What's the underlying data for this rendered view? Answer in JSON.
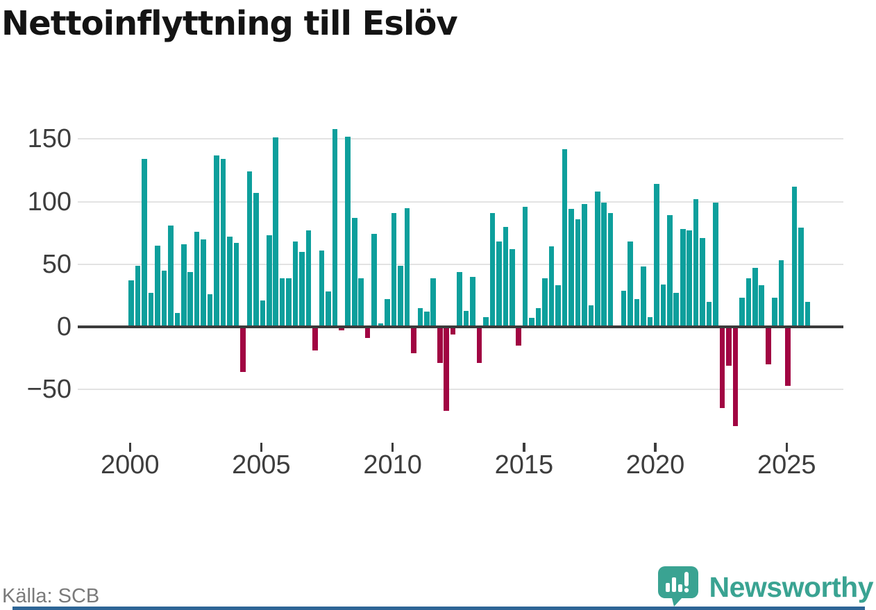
{
  "title": "Nettoinflyttning till Eslöv",
  "source_label": "Källa: SCB",
  "brand": {
    "name": "Newsworthy",
    "icon": "speech-bubble-bar-chart-exclamation-icon",
    "color": "#3aa392"
  },
  "colors": {
    "positive_bar": "#0d9f9c",
    "negative_bar": "#a10542",
    "zero_axis": "#3b3b3b",
    "gridline": "#e3e3e3",
    "tick_label": "#3d3d3d",
    "title_text": "#141414",
    "source_text": "#7a7a7a",
    "bottom_strip": "#2d6596"
  },
  "chart_data": {
    "type": "bar",
    "title": "Nettoinflyttning till Eslöv",
    "frequency": "quarterly",
    "x_start": "2000 Q1",
    "x_end": "2025 Q4",
    "xticks": [
      2000,
      2005,
      2010,
      2015,
      2020,
      2025
    ],
    "xtick_labels": [
      "2000",
      "2005",
      "2010",
      "2015",
      "2020",
      "2025"
    ],
    "yticks": [
      150,
      100,
      50,
      0,
      -50
    ],
    "ytick_labels": [
      "150",
      "100",
      "50",
      "0",
      "−50"
    ],
    "ylim": [
      -85,
      165
    ],
    "grid": true,
    "legend": "none",
    "values": [
      37,
      49,
      134,
      27,
      65,
      45,
      81,
      11,
      66,
      44,
      76,
      70,
      26,
      137,
      134,
      72,
      67,
      -36,
      124,
      107,
      21,
      73,
      151,
      39,
      39,
      68,
      60,
      77,
      -19,
      61,
      28,
      158,
      -3,
      152,
      87,
      39,
      -9,
      74,
      3,
      22,
      91,
      49,
      95,
      -21,
      15,
      12,
      39,
      -29,
      -67,
      -6,
      44,
      13,
      40,
      -29,
      8,
      91,
      68,
      80,
      62,
      -15,
      96,
      7,
      15,
      39,
      64,
      33,
      142,
      94,
      86,
      98,
      17,
      108,
      99,
      91,
      0,
      29,
      68,
      22,
      48,
      8,
      114,
      34,
      89,
      27,
      78,
      77,
      102,
      71,
      20,
      99,
      -65,
      -31,
      -79,
      23,
      39,
      47,
      33,
      -30,
      23,
      53,
      -47,
      112,
      79,
      20
    ]
  }
}
